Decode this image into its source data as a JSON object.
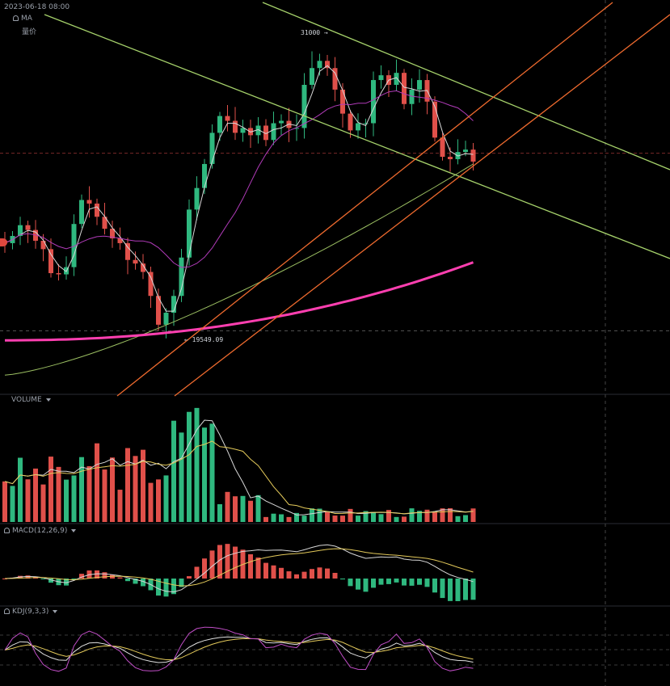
{
  "header": {
    "datetime": "2023-06-18 08:00",
    "ma_label": "MA",
    "volume_price_label": "量价"
  },
  "panes": {
    "volume_label": "VOLUME",
    "macd_label": "MACD(12,26,9)",
    "kdj_label": "KDJ(9,3,3)"
  },
  "annotations": {
    "high_label": "31000 →",
    "low_label": "← 19549.09"
  },
  "colors": {
    "up": "#2fb87f",
    "down": "#e0504a",
    "channel_green": "#a6d26b",
    "channel_orange": "#ee6a2e",
    "ma200": "#ff3fb0",
    "ma_white": "#d8d8d8",
    "ma_purple": "#b13bb9",
    "ma_olive": "#9bbf62",
    "kdj_k": "#e0e0e0",
    "kdj_d": "#e3c95a",
    "kdj_j": "#c04ec6"
  },
  "chart_data": {
    "type": "candlestick",
    "price_range": [
      17000,
      33000
    ],
    "reference_levels": [
      19549.09,
      26950
    ],
    "highlight_high": 31000,
    "highlight_low": 19549.09,
    "closes": [
      23200,
      23500,
      23950,
      23750,
      23300,
      22950,
      21950,
      21900,
      22200,
      24000,
      25000,
      24850,
      24300,
      23800,
      23400,
      23200,
      22500,
      22350,
      22000,
      21000,
      19800,
      20300,
      21000,
      22600,
      24600,
      25500,
      26500,
      27800,
      28500,
      28300,
      27800,
      28000,
      27700,
      28100,
      27500,
      28200,
      28300,
      28000,
      28000,
      29800,
      30500,
      30800,
      30500,
      29600,
      28600,
      27900,
      28200,
      28200,
      30000,
      30200,
      29800,
      30300,
      29000,
      29600,
      30000,
      29100,
      27600,
      26800,
      26700,
      27000,
      27100,
      26600
    ]
  }
}
